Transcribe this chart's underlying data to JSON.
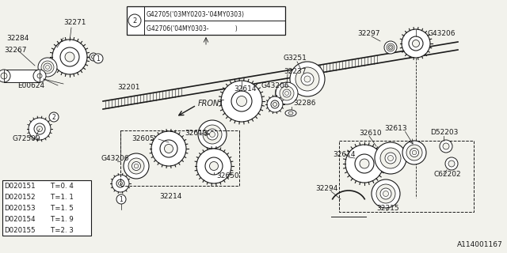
{
  "bg_color": "#f2f2ec",
  "line_color": "#1a1a1a",
  "box_color": "#ffffff",
  "table_data": [
    [
      "D020151",
      "T=0. 4"
    ],
    [
      "D020152",
      "T=1. 1"
    ],
    [
      "D020153",
      "T=1. 5"
    ],
    [
      "D020154",
      "T=1. 9"
    ],
    [
      "D020155",
      "T=2. 3"
    ]
  ],
  "watermark": "A114001167",
  "callout_line1": "G42705('03MY0203-'04MY0303)",
  "callout_line2": "G42706('04MY0303-              )"
}
